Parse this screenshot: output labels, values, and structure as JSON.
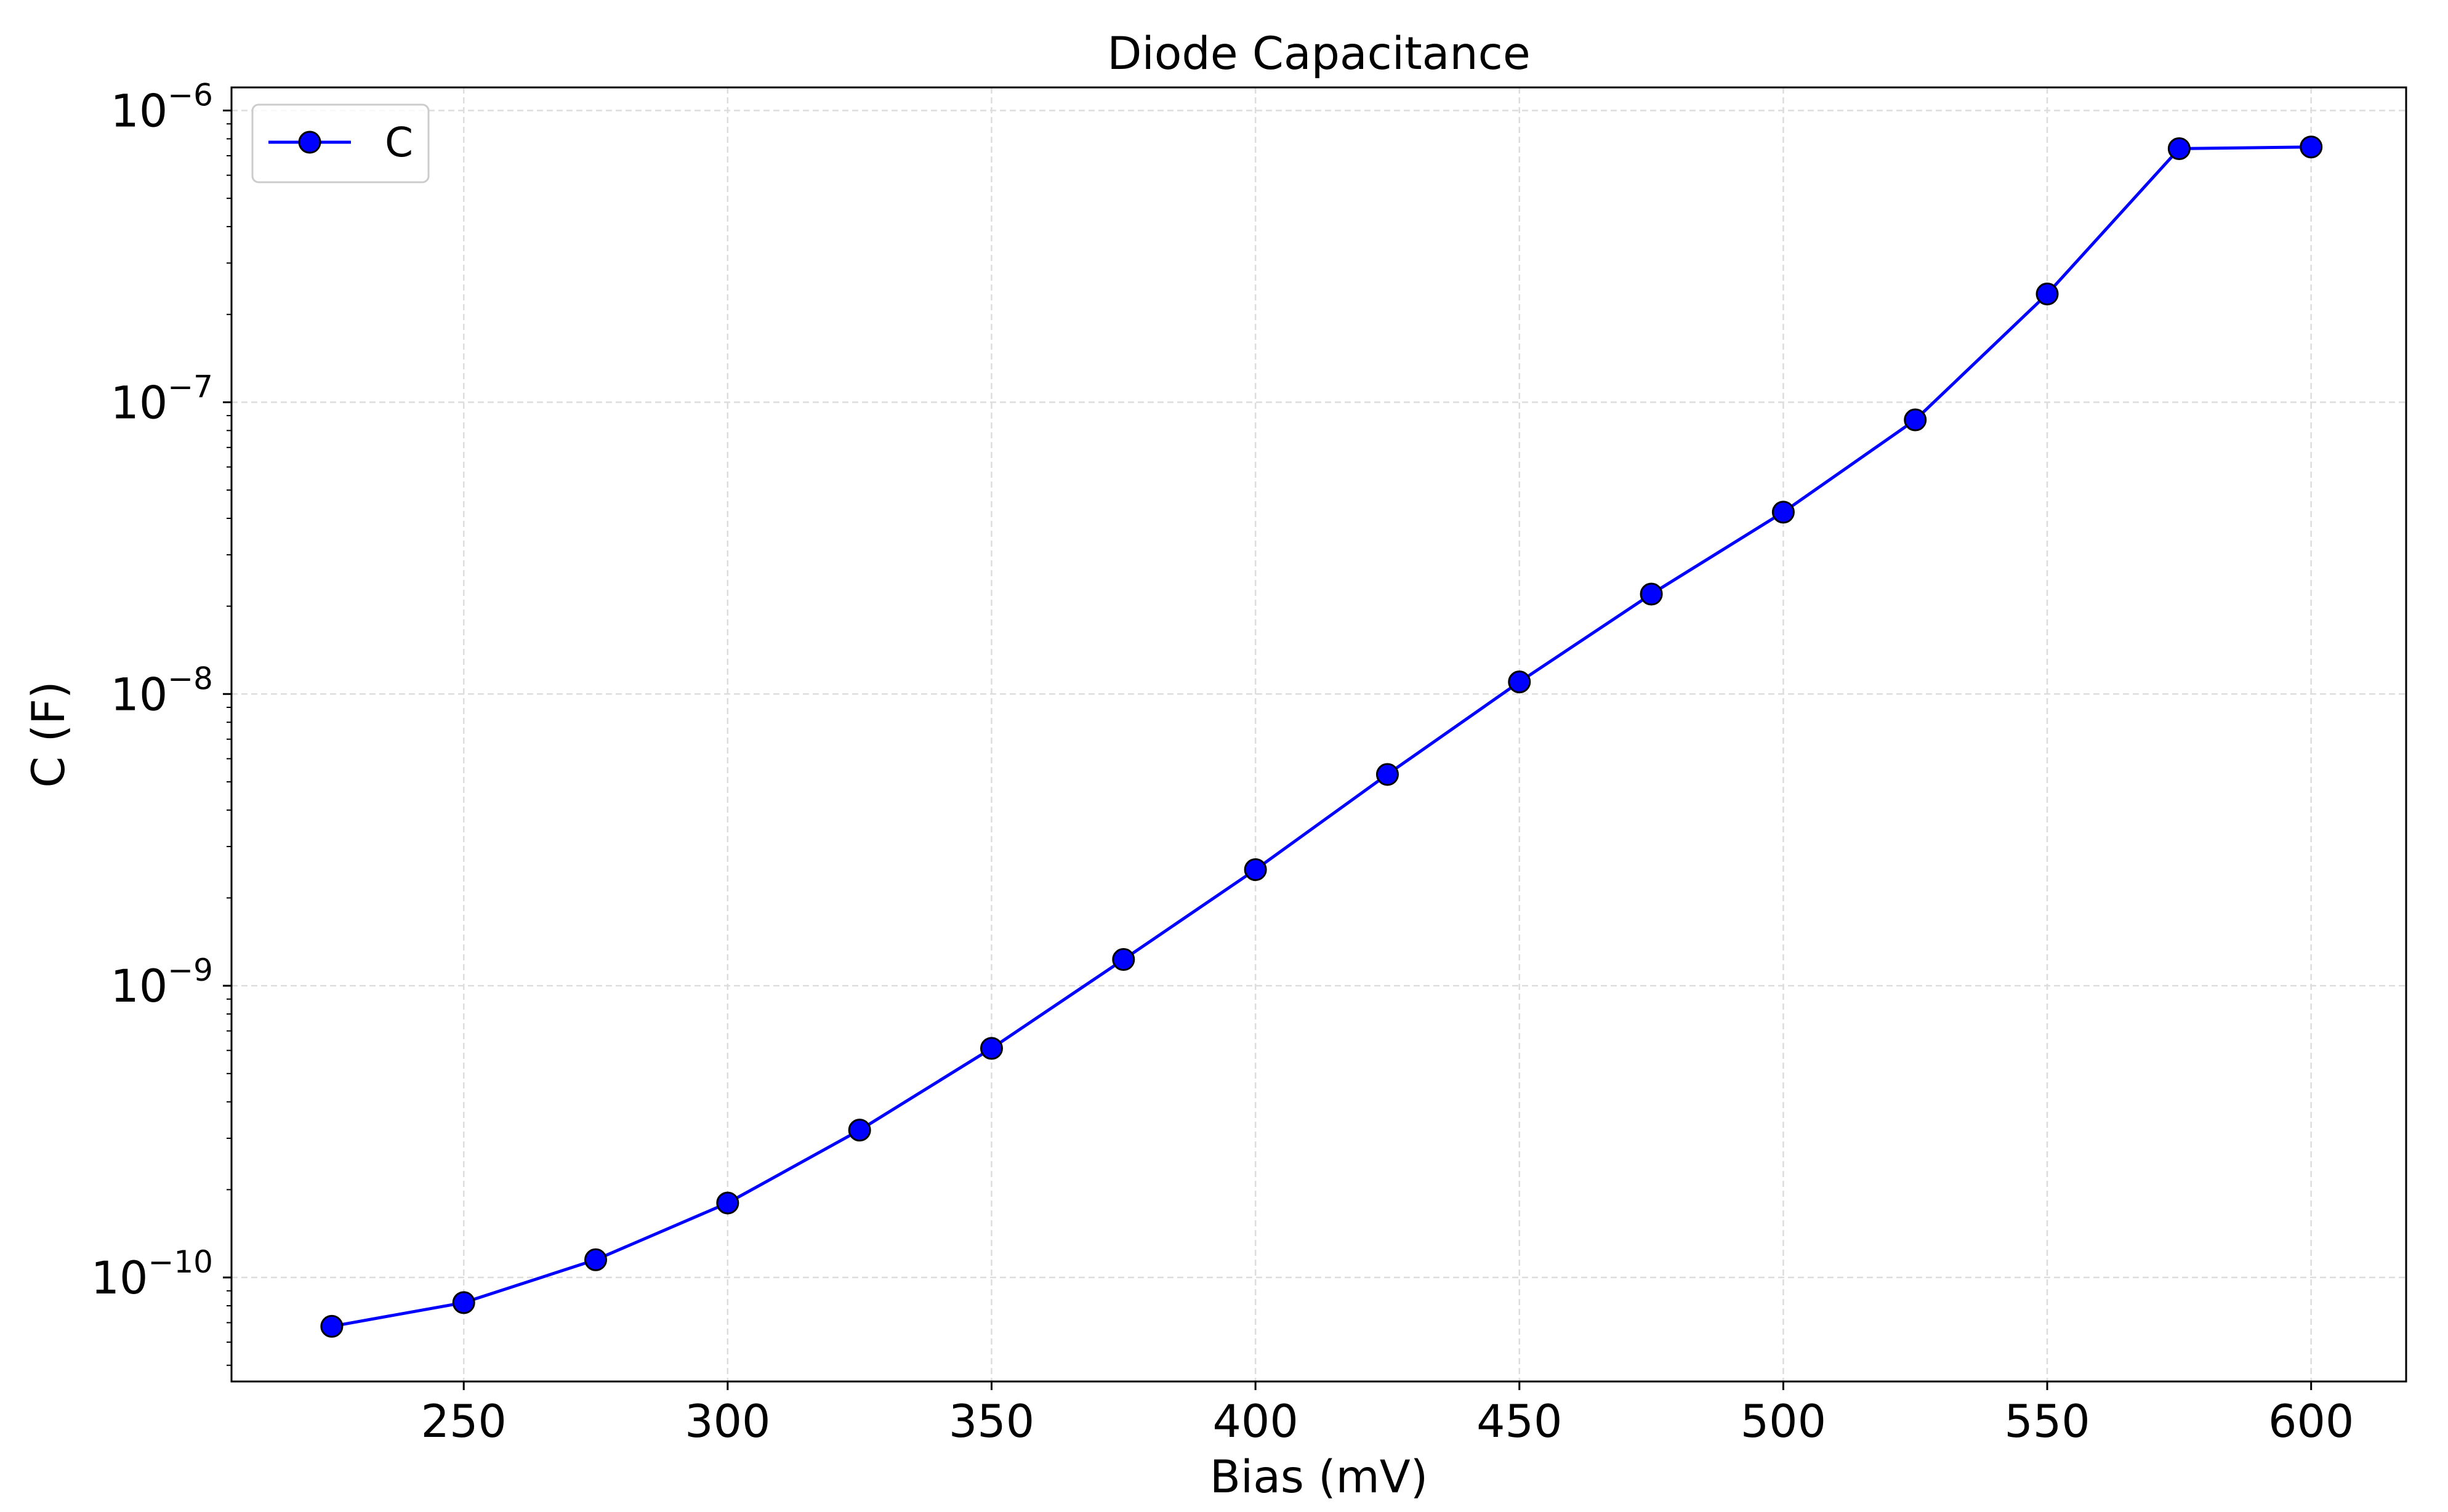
{
  "chart_data": {
    "type": "line",
    "title": "Diode Capacitance",
    "xlabel": "Bias (mV)",
    "ylabel": "C (F)",
    "yscale": "log",
    "xlim": [
      206,
      618
    ],
    "ylim": [
      4.4e-11,
      1.2e-06
    ],
    "grid": true,
    "grid_style": "dashed",
    "legend_position": "top-left",
    "x_ticks": [
      250,
      300,
      350,
      400,
      450,
      500,
      550,
      600
    ],
    "y_ticks": [
      {
        "value": 1e-10,
        "base": "10",
        "exp": "−10"
      },
      {
        "value": 1e-09,
        "base": "10",
        "exp": "−9"
      },
      {
        "value": 1e-08,
        "base": "10",
        "exp": "−8"
      },
      {
        "value": 1e-07,
        "base": "10",
        "exp": "−7"
      },
      {
        "value": 1e-06,
        "base": "10",
        "exp": "−6"
      }
    ],
    "series": [
      {
        "name": "C",
        "color": "#0000ff",
        "marker_fill": "#0000ff",
        "marker_edge": "#000000",
        "x": [
          225,
          250,
          275,
          300,
          325,
          350,
          375,
          400,
          425,
          450,
          475,
          500,
          525,
          550,
          575,
          600
        ],
        "y": [
          6.8e-11,
          8.2e-11,
          1.15e-10,
          1.8e-10,
          3.2e-10,
          6.1e-10,
          1.23e-09,
          2.5e-09,
          5.3e-09,
          1.1e-08,
          2.2e-08,
          4.2e-08,
          8.7e-08,
          2.35e-07,
          7.4e-07,
          7.5e-07
        ]
      }
    ]
  }
}
